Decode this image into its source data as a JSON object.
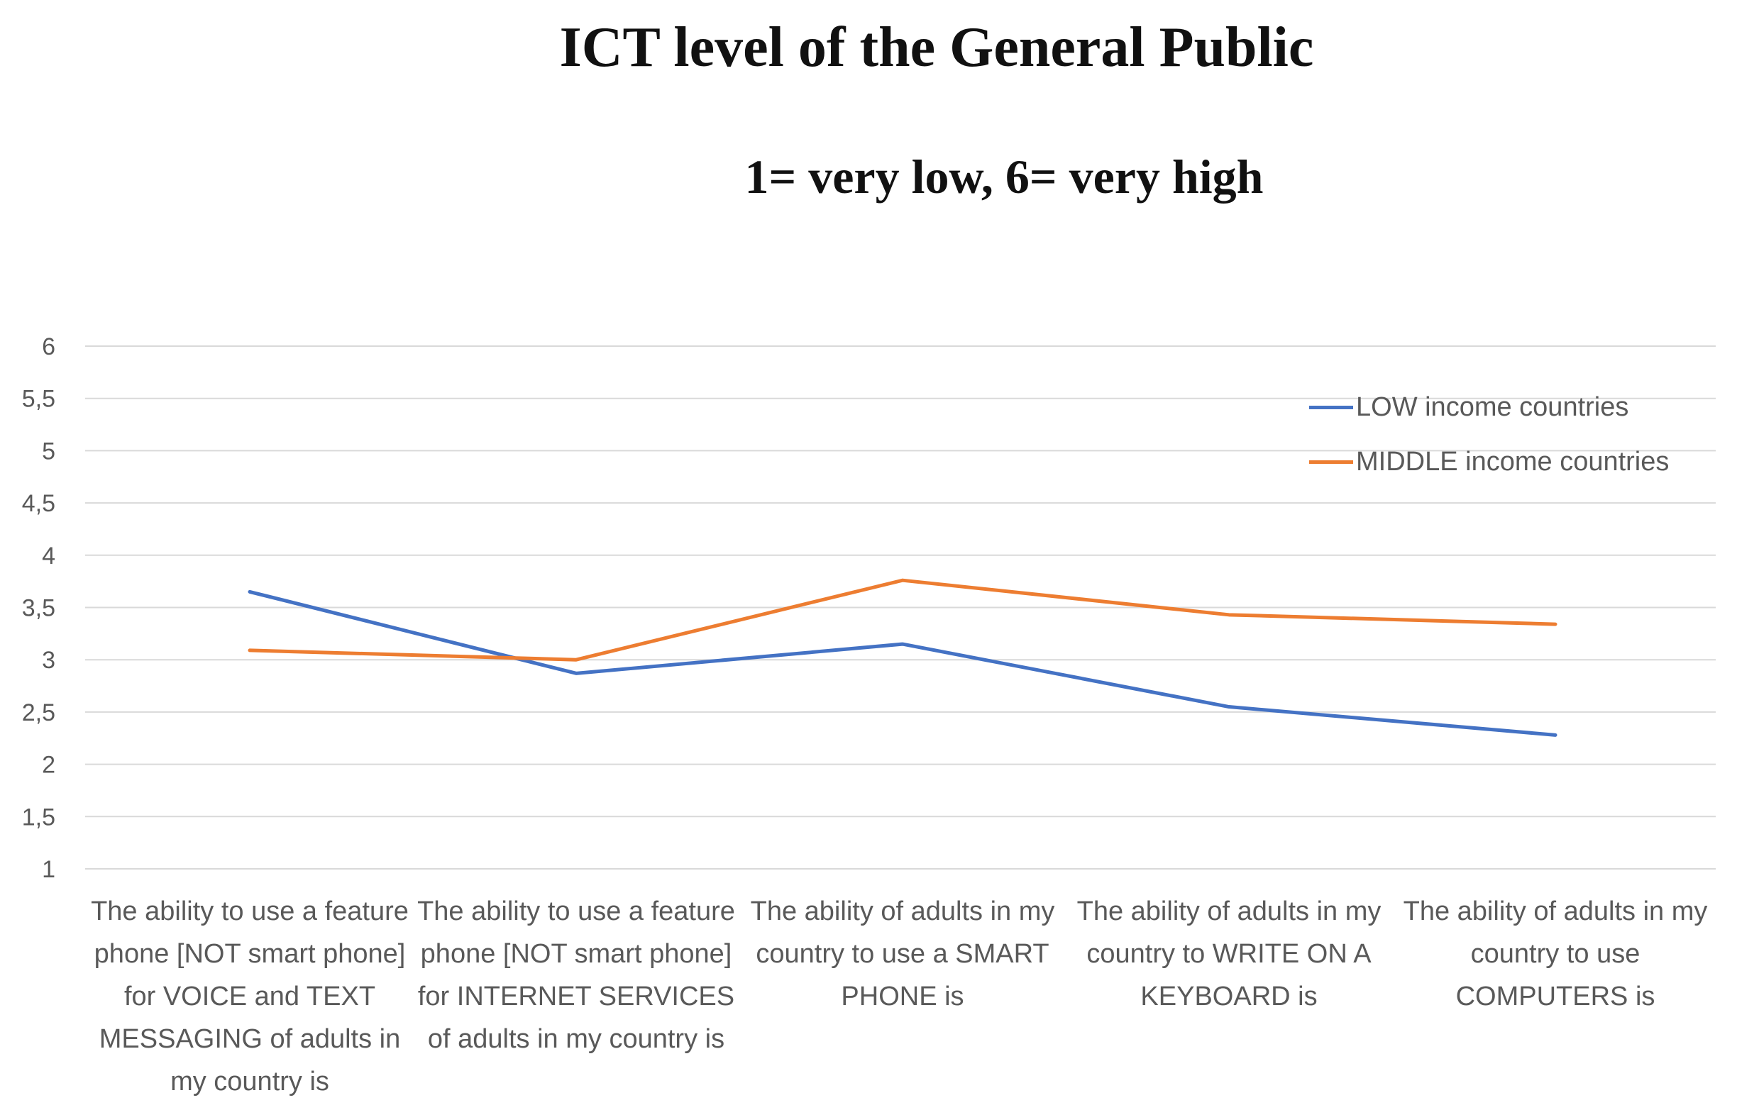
{
  "chart_data": {
    "type": "line",
    "title": "ICT level of the General Public",
    "subtitle": "1= very low, 6= very high",
    "xlabel": "",
    "ylabel": "",
    "ylim": [
      1,
      6
    ],
    "yticks": [
      "1",
      "1,5",
      "2",
      "2,5",
      "3",
      "3,5",
      "4",
      "4,5",
      "5",
      "5,5",
      "6"
    ],
    "grid": true,
    "legend_position": "top-right",
    "categories": [
      "The ability to use a feature phone [NOT smart phone] for VOICE and TEXT MESSAGING of adults in my country is",
      "The ability to use a feature phone [NOT smart phone] for INTERNET SERVICES of adults in my country is",
      "The ability of adults in my country to use a SMART PHONE is",
      "The ability of adults in my country to WRITE ON A KEYBOARD is",
      "The ability of adults in my country to use COMPUTERS is"
    ],
    "series": [
      {
        "name": "LOW income countries",
        "color": "#4472c4",
        "values": [
          3.65,
          2.87,
          3.15,
          2.55,
          2.28
        ]
      },
      {
        "name": "MIDDLE income countries",
        "color": "#ed7d31",
        "values": [
          3.09,
          3.0,
          3.76,
          3.43,
          3.34
        ]
      }
    ]
  }
}
